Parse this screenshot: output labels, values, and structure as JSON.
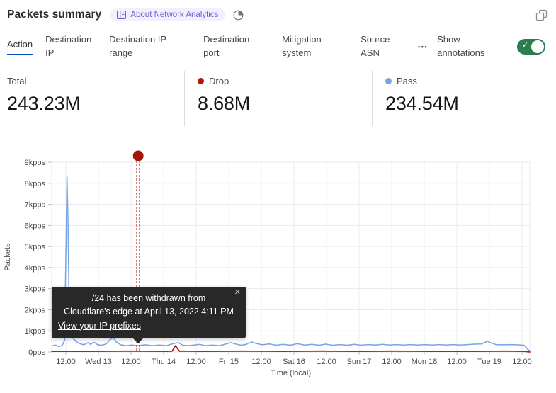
{
  "header": {
    "title": "Packets summary",
    "badge_label": "About Network Analytics"
  },
  "icons": {
    "check": "✓",
    "close": "✕",
    "more": "•••"
  },
  "tabs": {
    "items": [
      {
        "label": "Action",
        "active": true
      },
      {
        "label": "Destination IP",
        "active": false
      },
      {
        "label": "Destination IP range",
        "active": false
      },
      {
        "label": "Destination port",
        "active": false
      },
      {
        "label": "Mitigation system",
        "active": false
      },
      {
        "label": "Source ASN",
        "active": false
      }
    ],
    "show_annotations_label": "Show annotations",
    "toggle_on": true,
    "accent_underline_color": "#0051c3",
    "toggle_color": "#2e7d4f"
  },
  "stats": [
    {
      "label": "Total",
      "value": "243.23M",
      "dot_color": null
    },
    {
      "label": "Drop",
      "value": "8.68M",
      "dot_color": "#b51807"
    },
    {
      "label": "Pass",
      "value": "234.54M",
      "dot_color": "#75a4e7"
    }
  ],
  "chart_data": {
    "type": "line",
    "title": "Packets summary",
    "xlabel": "Time (local)",
    "ylabel": "Packets",
    "y_max": 9,
    "y_tick_labels": [
      "0pps",
      "1kpps",
      "2kpps",
      "3kpps",
      "4kpps",
      "5kpps",
      "6kpps",
      "7kpps",
      "8kpps",
      "9kpps"
    ],
    "x_tick_labels": [
      "12:00",
      "Wed 13",
      "12:00",
      "Thu 14",
      "12:00",
      "Fri 15",
      "12:00",
      "Sat 16",
      "12:00",
      "Sun 17",
      "12:00",
      "Mon 18",
      "12:00",
      "Tue 19",
      "12:00"
    ],
    "x_ticks_start_frac": 0.0296,
    "x_ticks_step_frac": 0.06815,
    "grid": true,
    "legend_position": "top",
    "series": [
      {
        "name": "Pass",
        "color": "#75a4e7",
        "width": 1.5,
        "points": [
          [
            0,
            0.28
          ],
          [
            0.007,
            0.33
          ],
          [
            0.015,
            0.26
          ],
          [
            0.022,
            0.3
          ],
          [
            0.027,
            0.55
          ],
          [
            0.03,
            5.2
          ],
          [
            0.032,
            8.35
          ],
          [
            0.034,
            6.3
          ],
          [
            0.037,
            1.1
          ],
          [
            0.04,
            0.72
          ],
          [
            0.046,
            0.62
          ],
          [
            0.052,
            0.48
          ],
          [
            0.058,
            0.4
          ],
          [
            0.067,
            0.34
          ],
          [
            0.076,
            0.44
          ],
          [
            0.081,
            0.36
          ],
          [
            0.089,
            0.46
          ],
          [
            0.096,
            0.34
          ],
          [
            0.105,
            0.32
          ],
          [
            0.114,
            0.38
          ],
          [
            0.123,
            0.6
          ],
          [
            0.129,
            0.68
          ],
          [
            0.135,
            0.48
          ],
          [
            0.144,
            0.34
          ],
          [
            0.156,
            0.3
          ],
          [
            0.167,
            0.33
          ],
          [
            0.181,
            0.3
          ],
          [
            0.196,
            0.34
          ],
          [
            0.21,
            0.3
          ],
          [
            0.225,
            0.33
          ],
          [
            0.24,
            0.3
          ],
          [
            0.255,
            0.4
          ],
          [
            0.265,
            0.44
          ],
          [
            0.274,
            0.32
          ],
          [
            0.286,
            0.3
          ],
          [
            0.298,
            0.33
          ],
          [
            0.31,
            0.36
          ],
          [
            0.321,
            0.3
          ],
          [
            0.336,
            0.33
          ],
          [
            0.351,
            0.3
          ],
          [
            0.363,
            0.37
          ],
          [
            0.375,
            0.44
          ],
          [
            0.384,
            0.38
          ],
          [
            0.396,
            0.32
          ],
          [
            0.407,
            0.36
          ],
          [
            0.418,
            0.47
          ],
          [
            0.428,
            0.4
          ],
          [
            0.44,
            0.34
          ],
          [
            0.455,
            0.38
          ],
          [
            0.47,
            0.32
          ],
          [
            0.484,
            0.36
          ],
          [
            0.499,
            0.32
          ],
          [
            0.514,
            0.39
          ],
          [
            0.529,
            0.33
          ],
          [
            0.544,
            0.36
          ],
          [
            0.559,
            0.32
          ],
          [
            0.573,
            0.37
          ],
          [
            0.588,
            0.32
          ],
          [
            0.603,
            0.35
          ],
          [
            0.618,
            0.32
          ],
          [
            0.633,
            0.36
          ],
          [
            0.647,
            0.32
          ],
          [
            0.662,
            0.35
          ],
          [
            0.677,
            0.33
          ],
          [
            0.692,
            0.36
          ],
          [
            0.707,
            0.33
          ],
          [
            0.721,
            0.35
          ],
          [
            0.736,
            0.33
          ],
          [
            0.751,
            0.35
          ],
          [
            0.766,
            0.33
          ],
          [
            0.781,
            0.35
          ],
          [
            0.796,
            0.33
          ],
          [
            0.81,
            0.35
          ],
          [
            0.825,
            0.33
          ],
          [
            0.84,
            0.35
          ],
          [
            0.855,
            0.33
          ],
          [
            0.87,
            0.35
          ],
          [
            0.884,
            0.37
          ],
          [
            0.899,
            0.38
          ],
          [
            0.911,
            0.5
          ],
          [
            0.92,
            0.42
          ],
          [
            0.929,
            0.35
          ],
          [
            0.944,
            0.34
          ],
          [
            0.959,
            0.35
          ],
          [
            0.973,
            0.34
          ],
          [
            0.988,
            0.32
          ],
          [
            0.996,
            0.12
          ],
          [
            1,
            0.05
          ]
        ]
      },
      {
        "name": "Drop",
        "color": "#b32114",
        "width": 1.8,
        "points": [
          [
            0,
            0.03
          ],
          [
            0.08,
            0.03
          ],
          [
            0.16,
            0.04
          ],
          [
            0.24,
            0.03
          ],
          [
            0.252,
            0.04
          ],
          [
            0.259,
            0.3
          ],
          [
            0.267,
            0.04
          ],
          [
            0.32,
            0.03
          ],
          [
            0.4,
            0.04
          ],
          [
            0.48,
            0.03
          ],
          [
            0.56,
            0.04
          ],
          [
            0.64,
            0.03
          ],
          [
            0.72,
            0.04
          ],
          [
            0.8,
            0.03
          ],
          [
            0.88,
            0.03
          ],
          [
            0.95,
            0.04
          ],
          [
            0.988,
            0.03
          ],
          [
            1,
            0
          ]
        ]
      }
    ],
    "annotation": {
      "x_frac": 0.181,
      "color": "#a81309",
      "tooltip": {
        "line1": "/24 has been withdrawn from",
        "line2": "Cloudflare's edge at April 13, 2022 4:11 PM",
        "link_label": "View your IP prefixes"
      }
    }
  }
}
